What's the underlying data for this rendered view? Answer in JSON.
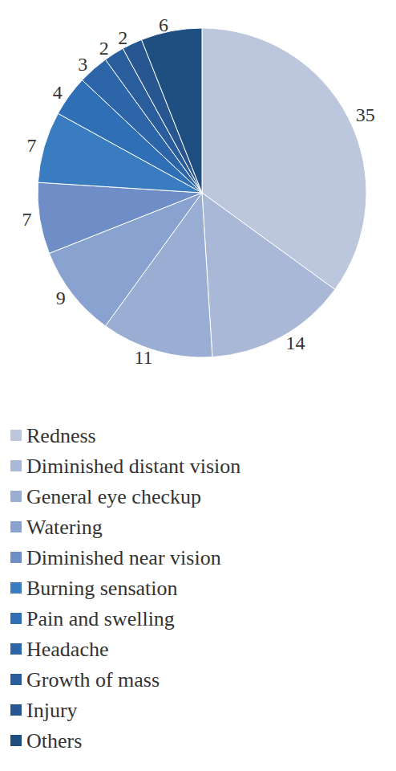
{
  "chart_data": {
    "type": "pie",
    "categories": [
      "Redness",
      "Diminished distant vision",
      "General eye checkup",
      "Watering",
      "Diminished near vision",
      "Burning sensation",
      "Pain and swelling",
      "Headache",
      "Growth of mass",
      "Injury",
      "Others"
    ],
    "values": [
      35,
      14,
      11,
      9,
      7,
      7,
      4,
      3,
      2,
      2,
      6
    ],
    "colors": [
      "#bcc6dc",
      "#a9b8d6",
      "#9aaed3",
      "#8aa2cf",
      "#6f8dc6",
      "#3a7cc0",
      "#2f6fb5",
      "#2c66a8",
      "#2a5d9b",
      "#285690",
      "#1f4e80"
    ],
    "data_labels": true,
    "legend": "bottom"
  }
}
